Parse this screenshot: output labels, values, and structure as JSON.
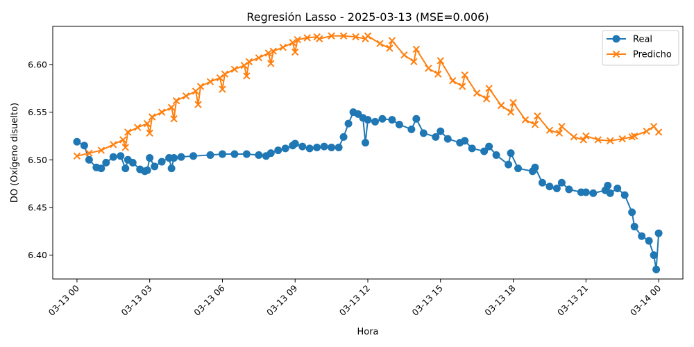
{
  "chart_data": {
    "type": "line",
    "title": "Regresión Lasso - 2025-03-13 (MSE=0.006)",
    "xlabel": "Hora",
    "ylabel": "DO (Oxígeno disuelto)",
    "xlim_hours": [
      -1.0,
      25.0
    ],
    "ylim": [
      6.375,
      6.64
    ],
    "x_ticks": [
      {
        "hour": 0,
        "label": "03-13 00"
      },
      {
        "hour": 3,
        "label": "03-13 03"
      },
      {
        "hour": 6,
        "label": "03-13 06"
      },
      {
        "hour": 9,
        "label": "03-13 09"
      },
      {
        "hour": 12,
        "label": "03-13 12"
      },
      {
        "hour": 15,
        "label": "03-13 15"
      },
      {
        "hour": 18,
        "label": "03-13 18"
      },
      {
        "hour": 21,
        "label": "03-13 21"
      },
      {
        "hour": 24,
        "label": "03-14 00"
      }
    ],
    "y_ticks": [
      {
        "value": 6.4,
        "label": "6.40"
      },
      {
        "value": 6.45,
        "label": "6.45"
      },
      {
        "value": 6.5,
        "label": "6.50"
      },
      {
        "value": 6.55,
        "label": "6.55"
      },
      {
        "value": 6.6,
        "label": "6.60"
      }
    ],
    "grid": false,
    "legend_position": "top-right",
    "series": [
      {
        "name": "Real",
        "color": "#1f77b4",
        "marker": "circle",
        "x": [
          0,
          0.3,
          0.5,
          0.8,
          1.0,
          1.2,
          1.5,
          1.8,
          2.0,
          2.1,
          2.3,
          2.6,
          2.8,
          2.9,
          3.0,
          3.2,
          3.5,
          3.8,
          3.9,
          4.0,
          4.3,
          4.8,
          5.5,
          6.0,
          6.5,
          7.0,
          7.5,
          7.8,
          8.0,
          8.3,
          8.6,
          8.9,
          9.0,
          9.3,
          9.6,
          9.9,
          10.2,
          10.5,
          10.8,
          11.0,
          11.2,
          11.4,
          11.6,
          11.8,
          11.9,
          12.0,
          12.3,
          12.6,
          13.0,
          13.3,
          13.8,
          14.0,
          14.3,
          14.8,
          15.0,
          15.3,
          15.8,
          16.0,
          16.3,
          16.8,
          17.0,
          17.3,
          17.8,
          17.9,
          18.2,
          18.8,
          18.9,
          19.2,
          19.5,
          19.8,
          20.0,
          20.3,
          20.8,
          21.0,
          21.3,
          21.8,
          21.9,
          22.0,
          22.3,
          22.6,
          22.9,
          23.0,
          23.3,
          23.6,
          23.8,
          23.9,
          24.0
        ],
        "y": [
          6.519,
          6.515,
          6.5,
          6.492,
          6.491,
          6.497,
          6.503,
          6.504,
          6.491,
          6.5,
          6.497,
          6.49,
          6.488,
          6.489,
          6.502,
          6.493,
          6.498,
          6.502,
          6.491,
          6.502,
          6.503,
          6.504,
          6.505,
          6.506,
          6.506,
          6.506,
          6.505,
          6.504,
          6.507,
          6.51,
          6.512,
          6.515,
          6.517,
          6.514,
          6.512,
          6.513,
          6.514,
          6.513,
          6.513,
          6.524,
          6.538,
          6.55,
          6.548,
          6.544,
          6.518,
          6.542,
          6.54,
          6.543,
          6.542,
          6.537,
          6.532,
          6.543,
          6.528,
          6.524,
          6.53,
          6.522,
          6.518,
          6.52,
          6.512,
          6.509,
          6.514,
          6.505,
          6.495,
          6.507,
          6.491,
          6.488,
          6.492,
          6.476,
          6.472,
          6.47,
          6.476,
          6.469,
          6.466,
          6.466,
          6.465,
          6.468,
          6.473,
          6.465,
          6.47,
          6.463,
          6.445,
          6.43,
          6.42,
          6.415,
          6.4,
          6.385,
          6.423
        ]
      },
      {
        "name": "Predicho",
        "color": "#ff7f0e",
        "marker": "x",
        "x": [
          0,
          0.5,
          1.0,
          1.5,
          1.9,
          2.0,
          2.1,
          2.5,
          2.9,
          3.0,
          3.1,
          3.5,
          3.9,
          4.0,
          4.1,
          4.5,
          4.9,
          5.0,
          5.1,
          5.5,
          5.9,
          6.0,
          6.1,
          6.5,
          6.9,
          7.0,
          7.1,
          7.5,
          7.9,
          8.0,
          8.1,
          8.5,
          8.9,
          9.0,
          9.1,
          9.5,
          9.9,
          10.0,
          10.5,
          11.0,
          11.5,
          11.9,
          12.0,
          12.5,
          12.9,
          13.0,
          13.5,
          13.9,
          14.0,
          14.5,
          14.9,
          15.0,
          15.5,
          15.9,
          16.0,
          16.5,
          16.9,
          17.0,
          17.5,
          17.9,
          18.0,
          18.5,
          18.9,
          19.0,
          19.5,
          19.9,
          20.0,
          20.5,
          20.9,
          21.0,
          21.5,
          22.0,
          22.5,
          22.9,
          23.0,
          23.5,
          23.8,
          24.0
        ],
        "y": [
          6.504,
          6.507,
          6.51,
          6.516,
          6.521,
          6.513,
          6.529,
          6.534,
          6.538,
          6.528,
          6.545,
          6.55,
          6.555,
          6.543,
          6.562,
          6.567,
          6.572,
          6.558,
          6.577,
          6.582,
          6.586,
          6.574,
          6.59,
          6.595,
          6.599,
          6.588,
          6.603,
          6.607,
          6.612,
          6.601,
          6.614,
          6.618,
          6.623,
          6.613,
          6.626,
          6.628,
          6.629,
          6.627,
          6.63,
          6.63,
          6.629,
          6.627,
          6.63,
          6.622,
          6.617,
          6.625,
          6.61,
          6.603,
          6.616,
          6.596,
          6.59,
          6.604,
          6.583,
          6.577,
          6.589,
          6.57,
          6.564,
          6.575,
          6.557,
          6.55,
          6.56,
          6.542,
          6.537,
          6.546,
          6.531,
          6.528,
          6.535,
          6.524,
          6.521,
          6.525,
          6.521,
          6.52,
          6.522,
          6.524,
          6.525,
          6.53,
          6.535,
          6.529
        ]
      }
    ]
  }
}
